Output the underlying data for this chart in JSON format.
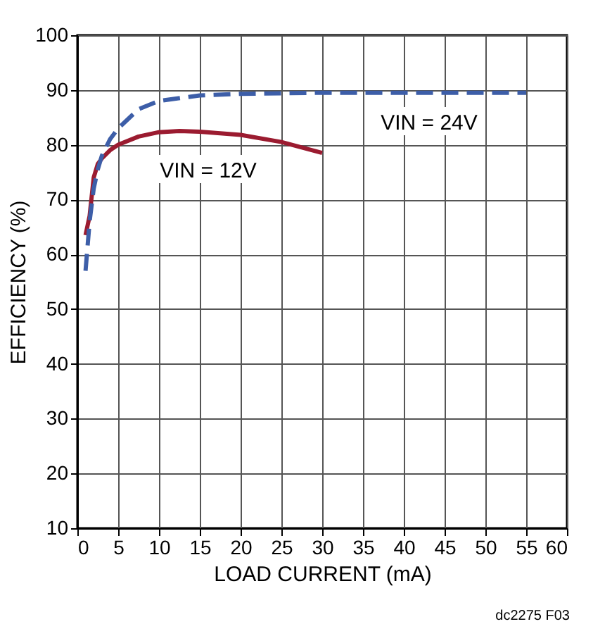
{
  "chart_data": {
    "type": "line",
    "xlabel": "LOAD CURRENT (mA)",
    "ylabel": "EFFICIENCY (%)",
    "xlim": [
      0,
      60
    ],
    "xticks": [
      0,
      5,
      10,
      15,
      20,
      25,
      30,
      35,
      40,
      45,
      50,
      55,
      60
    ],
    "ylim": [
      10,
      100
    ],
    "yticks": [
      10,
      20,
      30,
      40,
      50,
      60,
      70,
      80,
      90,
      100
    ],
    "grid": true,
    "marker": "none",
    "series": [
      {
        "color": "#9b1b30",
        "line_style": "solid",
        "x": [
          1,
          1.5,
          2,
          2.5,
          3,
          4,
          5,
          7.5,
          10,
          12.5,
          15,
          20,
          25,
          30
        ],
        "values": [
          63.5,
          67,
          74,
          76.5,
          77.5,
          79,
          80,
          81.5,
          82.3,
          82.5,
          82.4,
          81.8,
          80.5,
          78.5
        ]
      },
      {
        "color": "#3d5ea8",
        "line_style": "dashed",
        "x": [
          1,
          1.5,
          2,
          2.5,
          3,
          4,
          5,
          7.5,
          10,
          15,
          20,
          30,
          40,
          55
        ],
        "values": [
          57,
          66,
          72,
          75.5,
          78,
          81,
          83,
          86.5,
          88,
          89,
          89.3,
          89.5,
          89.5,
          89.5
        ]
      }
    ],
    "annotations": [
      "VIN = 12V",
      "VIN = 24V",
      "dc2275 F03"
    ]
  }
}
